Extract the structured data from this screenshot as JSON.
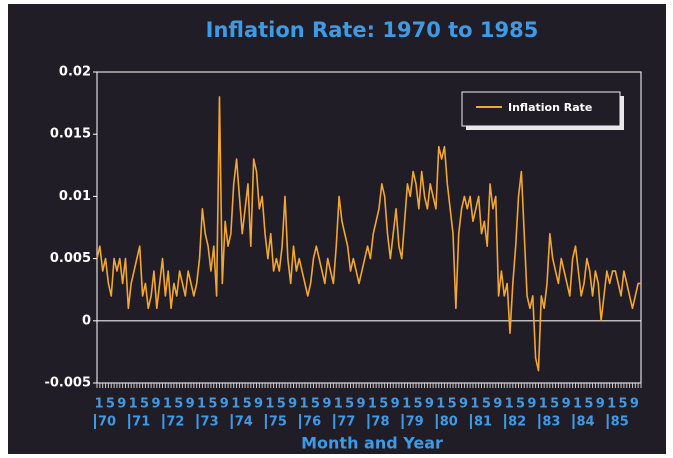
{
  "chart_data": {
    "type": "line",
    "title": "Inflation Rate: 1970 to 1985",
    "x_label": "Month and Year",
    "month_ticks": [
      1,
      5,
      9
    ],
    "year_labels": [
      "70",
      "71",
      "72",
      "73",
      "74",
      "75",
      "76",
      "77",
      "78",
      "79",
      "80",
      "81",
      "82",
      "83",
      "84",
      "85"
    ],
    "ylim": [
      -0.005,
      0.02
    ],
    "yticks": [
      0.02,
      0.015,
      0.01,
      0.005,
      0,
      -0.005
    ],
    "legend": "top-right",
    "series": [
      {
        "name": "Inflation Rate",
        "color": "#f2a633",
        "values": [
          0.005,
          0.006,
          0.004,
          0.005,
          0.003,
          0.002,
          0.005,
          0.004,
          0.005,
          0.003,
          0.005,
          0.001,
          0.003,
          0.004,
          0.005,
          0.006,
          0.002,
          0.003,
          0.001,
          0.002,
          0.004,
          0.001,
          0.003,
          0.005,
          0.002,
          0.004,
          0.001,
          0.003,
          0.002,
          0.004,
          0.003,
          0.002,
          0.004,
          0.003,
          0.002,
          0.003,
          0.005,
          0.009,
          0.007,
          0.006,
          0.004,
          0.006,
          0.002,
          0.018,
          0.003,
          0.008,
          0.006,
          0.007,
          0.011,
          0.013,
          0.01,
          0.007,
          0.009,
          0.011,
          0.006,
          0.013,
          0.012,
          0.009,
          0.01,
          0.007,
          0.005,
          0.007,
          0.004,
          0.005,
          0.004,
          0.006,
          0.01,
          0.005,
          0.003,
          0.006,
          0.004,
          0.005,
          0.004,
          0.003,
          0.002,
          0.003,
          0.005,
          0.006,
          0.005,
          0.004,
          0.003,
          0.005,
          0.004,
          0.003,
          0.006,
          0.01,
          0.008,
          0.007,
          0.006,
          0.004,
          0.005,
          0.004,
          0.003,
          0.004,
          0.005,
          0.006,
          0.005,
          0.007,
          0.008,
          0.009,
          0.011,
          0.01,
          0.007,
          0.005,
          0.007,
          0.009,
          0.006,
          0.005,
          0.008,
          0.011,
          0.01,
          0.012,
          0.011,
          0.009,
          0.012,
          0.01,
          0.009,
          0.011,
          0.01,
          0.009,
          0.014,
          0.013,
          0.014,
          0.011,
          0.009,
          0.007,
          0.001,
          0.007,
          0.009,
          0.01,
          0.009,
          0.01,
          0.008,
          0.009,
          0.01,
          0.007,
          0.008,
          0.006,
          0.011,
          0.009,
          0.01,
          0.002,
          0.004,
          0.002,
          0.003,
          -0.001,
          0.003,
          0.006,
          0.01,
          0.012,
          0.007,
          0.002,
          0.001,
          0.002,
          -0.003,
          -0.004,
          0.002,
          0.001,
          0.003,
          0.007,
          0.005,
          0.004,
          0.003,
          0.005,
          0.004,
          0.003,
          0.002,
          0.005,
          0.006,
          0.004,
          0.002,
          0.003,
          0.005,
          0.004,
          0.002,
          0.004,
          0.003,
          0.0,
          0.002,
          0.004,
          0.003,
          0.004,
          0.004,
          0.003,
          0.002,
          0.004,
          0.003,
          0.002,
          0.001,
          0.002,
          0.003,
          0.003
        ]
      }
    ]
  }
}
